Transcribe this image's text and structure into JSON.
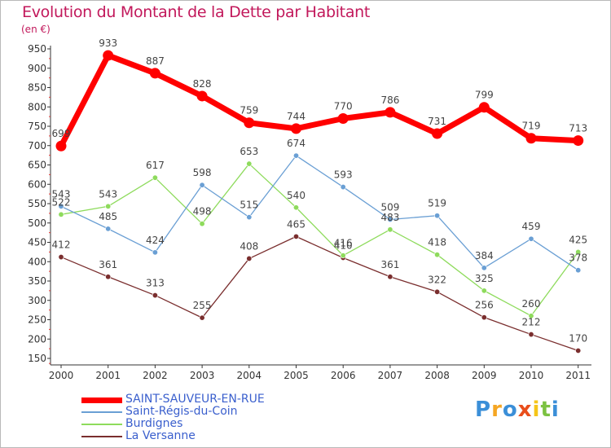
{
  "chart_data": {
    "type": "line",
    "title": "Evolution du Montant de la Dette par Habitant",
    "subtitle": "(en €)",
    "x": [
      "2000",
      "2001",
      "2002",
      "2003",
      "2004",
      "2005",
      "2006",
      "2007",
      "2008",
      "2009",
      "2010",
      "2011"
    ],
    "yticks": [
      150,
      200,
      250,
      300,
      350,
      400,
      450,
      500,
      550,
      600,
      650,
      700,
      750,
      800,
      850,
      900,
      950
    ],
    "ylim": [
      140,
      960
    ],
    "grid": false,
    "legend_position": "bottom-left",
    "series": [
      {
        "name": "SAINT-SAUVEUR-EN-RUE",
        "color": "#ff0000",
        "width": 7,
        "marker": 6.5,
        "values": [
          699,
          933,
          887,
          828,
          759,
          744,
          770,
          786,
          731,
          799,
          719,
          713
        ],
        "labels": [
          "699",
          "933",
          "887",
          "828",
          "759",
          "744",
          "770",
          "786",
          "731",
          "799",
          "719",
          "713"
        ]
      },
      {
        "name": "Saint-Régis-du-Coin",
        "color": "#6a9fd4",
        "width": 1.3,
        "marker": 3.2,
        "values": [
          543,
          485,
          424,
          598,
          515,
          674,
          593,
          509,
          519,
          384,
          459,
          378
        ],
        "labels": [
          "543",
          "485",
          "424",
          "598",
          "515",
          "674",
          "593",
          "509",
          "519",
          "384",
          "459",
          "378"
        ]
      },
      {
        "name": "Burdignes",
        "color": "#8edb5c",
        "width": 1.3,
        "marker": 3.2,
        "values": [
          522,
          543,
          617,
          498,
          653,
          540,
          416,
          483,
          418,
          325,
          260,
          425
        ],
        "labels": [
          "522",
          "543",
          "617",
          "498",
          "653",
          "540",
          "416",
          "483",
          "418",
          "325",
          "260",
          "425"
        ]
      },
      {
        "name": "La Versanne",
        "color": "#7a2e2e",
        "width": 1.3,
        "marker": 3.2,
        "values": [
          412,
          361,
          313,
          255,
          408,
          465,
          410,
          361,
          322,
          256,
          212,
          170
        ],
        "labels": [
          "412",
          "361",
          "313",
          "255",
          "408",
          "465",
          "410",
          "361",
          "322",
          "256",
          "212",
          "170"
        ]
      }
    ]
  },
  "logo": {
    "letters": [
      "P",
      "r",
      "o",
      "x",
      "i",
      "t",
      "i"
    ],
    "colors": [
      "#3b8fd8",
      "#f5a623",
      "#3b8fd8",
      "#e94e1b",
      "#f5c518",
      "#7cc242",
      "#3b8fd8"
    ]
  }
}
